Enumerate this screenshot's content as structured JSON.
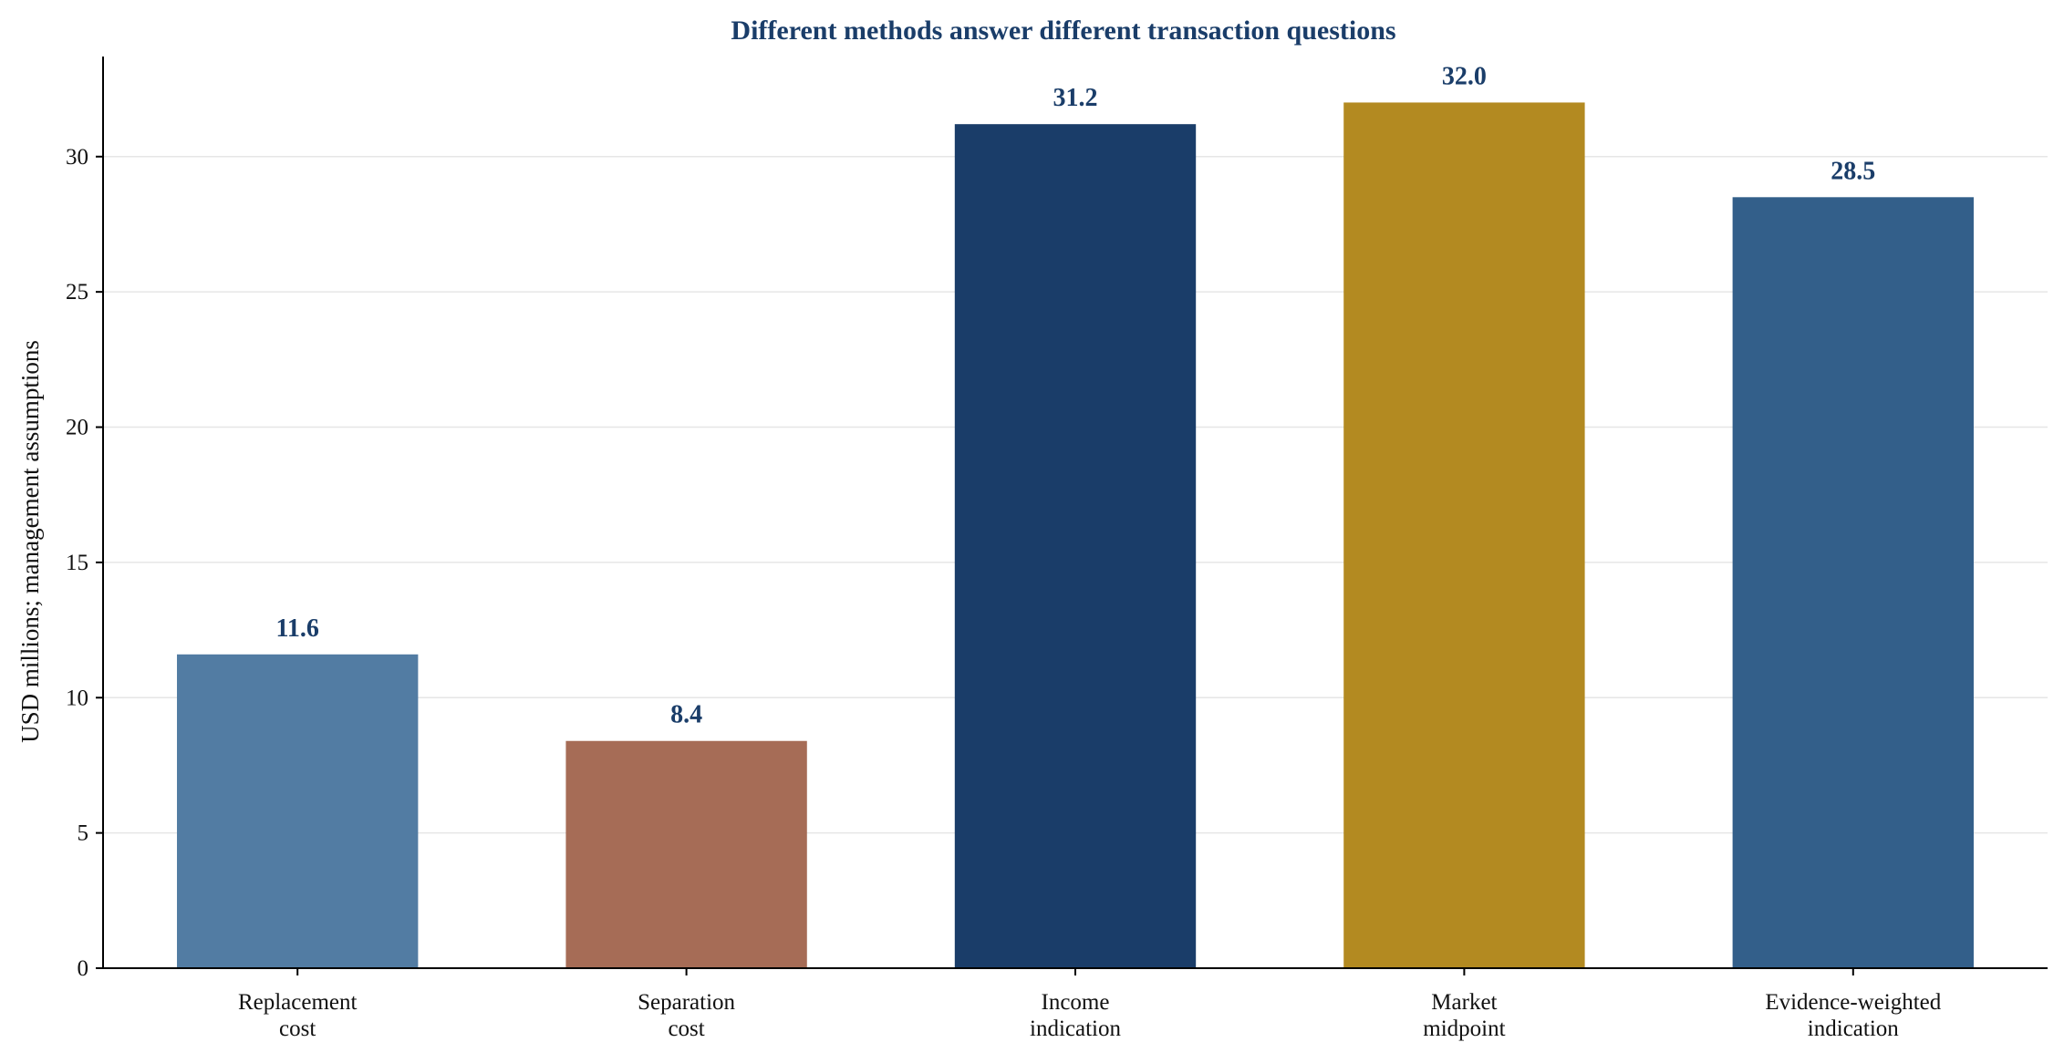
{
  "chart_data": {
    "type": "bar",
    "title": "Different methods answer different transaction questions",
    "xlabel": "",
    "ylabel": "USD millions; management assumptions",
    "categories": [
      [
        "Replacement",
        "cost"
      ],
      [
        "Separation",
        "cost"
      ],
      [
        "Income",
        "indication"
      ],
      [
        "Market",
        "midpoint"
      ],
      [
        "Evidence-weighted",
        "indication"
      ]
    ],
    "values": [
      11.6,
      8.4,
      31.2,
      32.0,
      28.5
    ],
    "value_labels": [
      "11.6",
      "8.4",
      "31.2",
      "32.0",
      "28.5"
    ],
    "bar_colors": [
      "#527ca3",
      "#a66c56",
      "#1a3d69",
      "#b38a21",
      "#335f8a"
    ],
    "ylim": [
      0,
      33.7
    ],
    "yticks": [
      0,
      5,
      10,
      15,
      20,
      25,
      30
    ],
    "grid": true,
    "legend": "none",
    "title_color": "#1a3d69",
    "value_label_color": "#1a3d69"
  }
}
